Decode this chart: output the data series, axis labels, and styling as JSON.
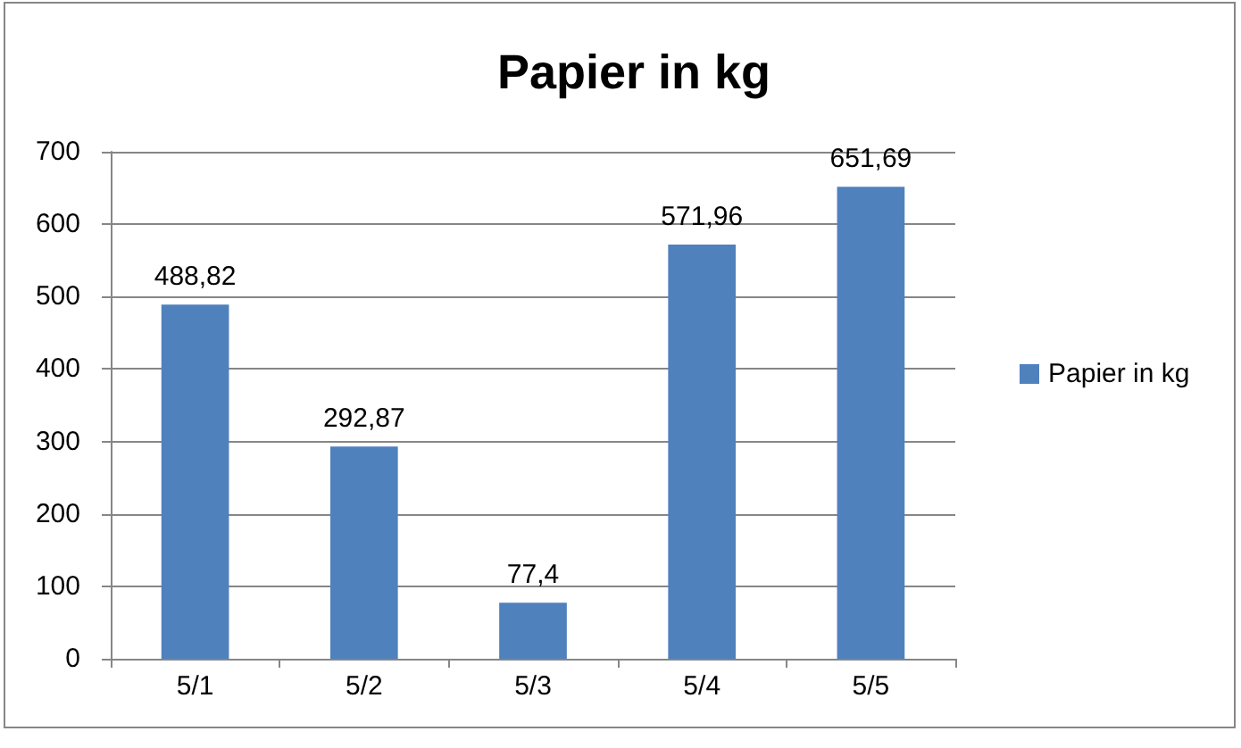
{
  "chart_data": {
    "type": "bar",
    "title": "Papier in kg",
    "categories": [
      "5/1",
      "5/2",
      "5/3",
      "5/4",
      "5/5"
    ],
    "series": [
      {
        "name": "Papier in kg",
        "color": "#4f81bd",
        "values": [
          488.82,
          292.87,
          77.4,
          571.96,
          651.69
        ],
        "value_labels": [
          "488,82",
          "292,87",
          "77,4",
          "571,96",
          "651,69"
        ]
      }
    ],
    "ylim": [
      0,
      700
    ],
    "yticks": [
      0,
      100,
      200,
      300,
      400,
      500,
      600,
      700
    ],
    "grid": "y",
    "legend": "right"
  }
}
